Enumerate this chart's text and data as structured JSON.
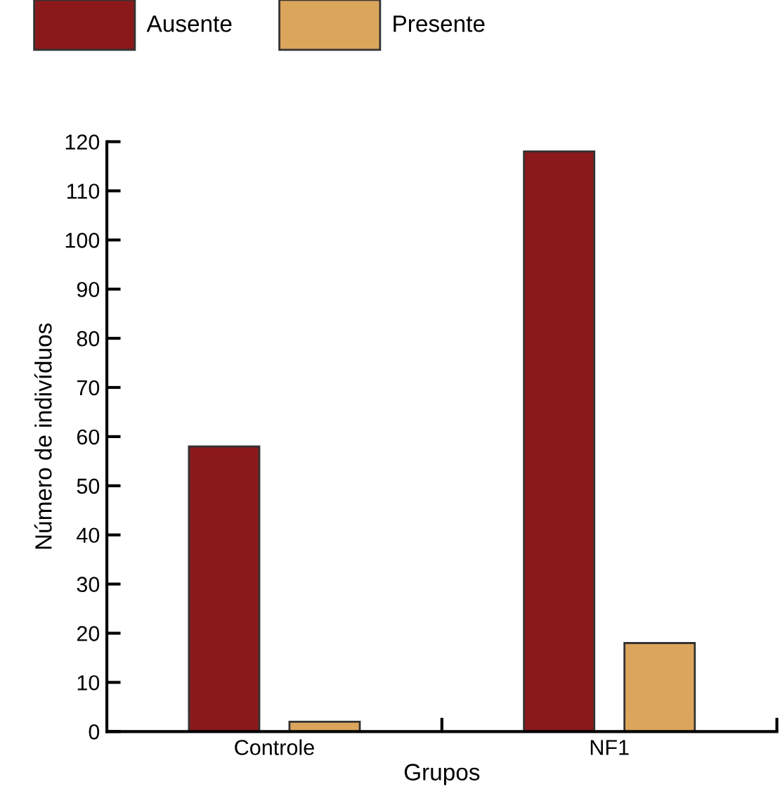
{
  "chart_data": {
    "type": "bar",
    "xlabel": "Grupos",
    "ylabel": "Número de indivíduos",
    "categories": [
      "Controle",
      "NF1"
    ],
    "series": [
      {
        "name": "Ausente",
        "color": "#8b191c",
        "values": [
          58,
          118
        ]
      },
      {
        "name": "Presente",
        "color": "#dba55c",
        "values": [
          2,
          18
        ]
      }
    ],
    "ylim": [
      0,
      120
    ],
    "yticks": [
      0,
      10,
      20,
      30,
      40,
      50,
      60,
      70,
      80,
      90,
      100,
      110,
      120
    ],
    "grid": false,
    "legend": "top left"
  }
}
